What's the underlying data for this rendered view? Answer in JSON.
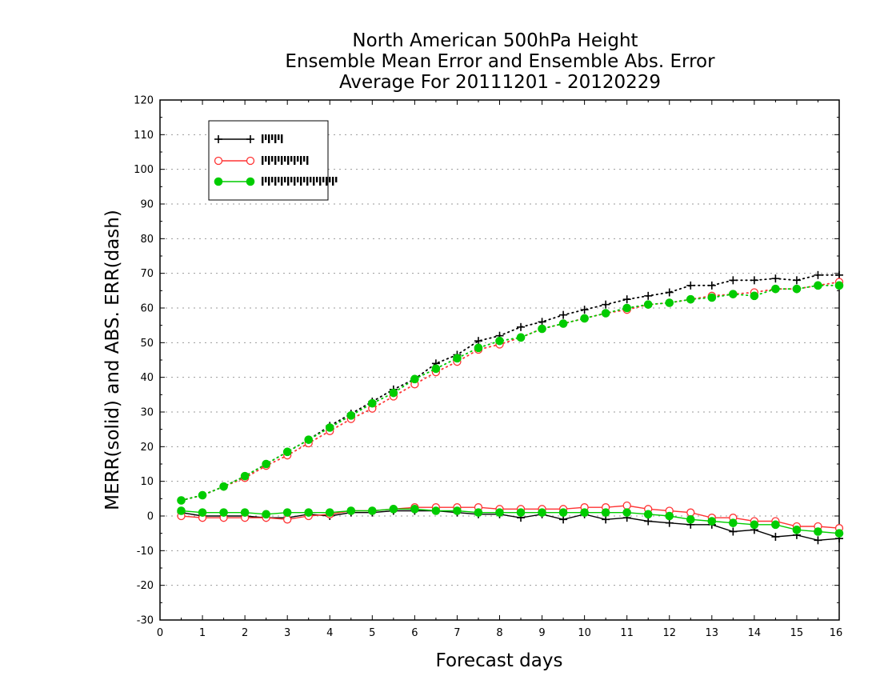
{
  "chart_data": {
    "type": "line",
    "title": [
      "North American 500hPa Height",
      "Ensemble Mean Error and Ensemble Abs. Error",
      "Average For 20111201 - 20120229"
    ],
    "xlabel": "Forecast days",
    "ylabel": "MERR(solid) and ABS. ERR(dash)",
    "xlim": [
      0,
      16
    ],
    "ylim": [
      -30,
      120
    ],
    "xticks": [
      "0",
      "1",
      "2",
      "3",
      "4",
      "5",
      "6",
      "7",
      "8",
      "9",
      "10",
      "11",
      "12",
      "13",
      "14",
      "15",
      "16"
    ],
    "yticks": [
      "-30",
      "-20",
      "-10",
      "0",
      "10",
      "20",
      "30",
      "40",
      "50",
      "60",
      "70",
      "80",
      "90",
      "100",
      "110",
      "120"
    ],
    "grid": true,
    "legend_position": "top-left",
    "x": [
      0.5,
      1,
      1.5,
      2,
      2.5,
      3,
      3.5,
      4,
      4.5,
      5,
      5.5,
      6,
      6.5,
      7,
      7.5,
      8,
      8.5,
      9,
      9.5,
      10,
      10.5,
      11,
      11.5,
      12,
      12.5,
      13,
      13.5,
      14,
      14.5,
      15,
      15.5,
      16
    ],
    "series": [
      {
        "color": "#000000",
        "marker": "plus",
        "abs_err": [
          4.5,
          6.0,
          8.5,
          11.5,
          15.0,
          18.5,
          22.0,
          26.0,
          29.5,
          33.0,
          36.5,
          39.5,
          44.0,
          46.5,
          50.5,
          52.0,
          54.5,
          56.0,
          58.0,
          59.5,
          61.0,
          62.5,
          63.5,
          64.5,
          66.5,
          66.5,
          68.0,
          68.0,
          68.5,
          68.0,
          69.5,
          69.5
        ],
        "mean_err": [
          1.0,
          0.0,
          0.0,
          0.0,
          -0.5,
          -0.5,
          0.5,
          0.0,
          1.0,
          1.0,
          1.5,
          1.5,
          1.5,
          1.0,
          0.5,
          0.5,
          -0.5,
          0.5,
          -1.0,
          0.5,
          -1.0,
          -0.5,
          -1.5,
          -2.0,
          -2.5,
          -2.5,
          -4.5,
          -4.0,
          -6.0,
          -5.5,
          -7.0,
          -6.5
        ]
      },
      {
        "color": "#ff3333",
        "marker": "open-circle",
        "abs_err": [
          4.5,
          6.0,
          8.5,
          11.0,
          14.5,
          17.5,
          21.0,
          24.5,
          28.0,
          31.0,
          34.5,
          38.0,
          41.5,
          44.5,
          48.0,
          49.5,
          51.5,
          54.0,
          55.5,
          57.0,
          58.5,
          59.5,
          61.0,
          61.5,
          62.5,
          63.5,
          64.0,
          64.5,
          65.5,
          65.5,
          66.5,
          67.5
        ],
        "mean_err": [
          0.0,
          -0.5,
          -0.5,
          -0.5,
          -0.5,
          -1.0,
          0.0,
          0.5,
          1.5,
          1.5,
          2.0,
          2.5,
          2.5,
          2.5,
          2.5,
          2.0,
          2.0,
          2.0,
          2.0,
          2.5,
          2.5,
          3.0,
          2.0,
          1.5,
          1.0,
          -0.5,
          -0.5,
          -1.5,
          -1.5,
          -3.0,
          -3.0,
          -3.5
        ]
      },
      {
        "color": "#00cc00",
        "marker": "filled-circle",
        "abs_err": [
          4.5,
          6.0,
          8.5,
          11.5,
          15.0,
          18.5,
          22.0,
          25.5,
          29.0,
          32.5,
          35.5,
          39.5,
          42.5,
          45.5,
          48.5,
          50.5,
          51.5,
          54.0,
          55.5,
          57.0,
          58.5,
          60.0,
          61.0,
          61.5,
          62.5,
          63.0,
          64.0,
          63.5,
          65.5,
          65.5,
          66.5,
          66.5
        ],
        "mean_err": [
          1.5,
          1.0,
          1.0,
          1.0,
          0.5,
          1.0,
          1.0,
          1.0,
          1.5,
          1.5,
          2.0,
          2.0,
          1.5,
          1.5,
          1.0,
          1.0,
          1.0,
          1.0,
          1.0,
          1.0,
          1.0,
          1.0,
          0.5,
          0.0,
          -1.0,
          -1.5,
          -2.0,
          -2.5,
          -2.5,
          -4.0,
          -4.5,
          -5.0
        ]
      }
    ]
  }
}
